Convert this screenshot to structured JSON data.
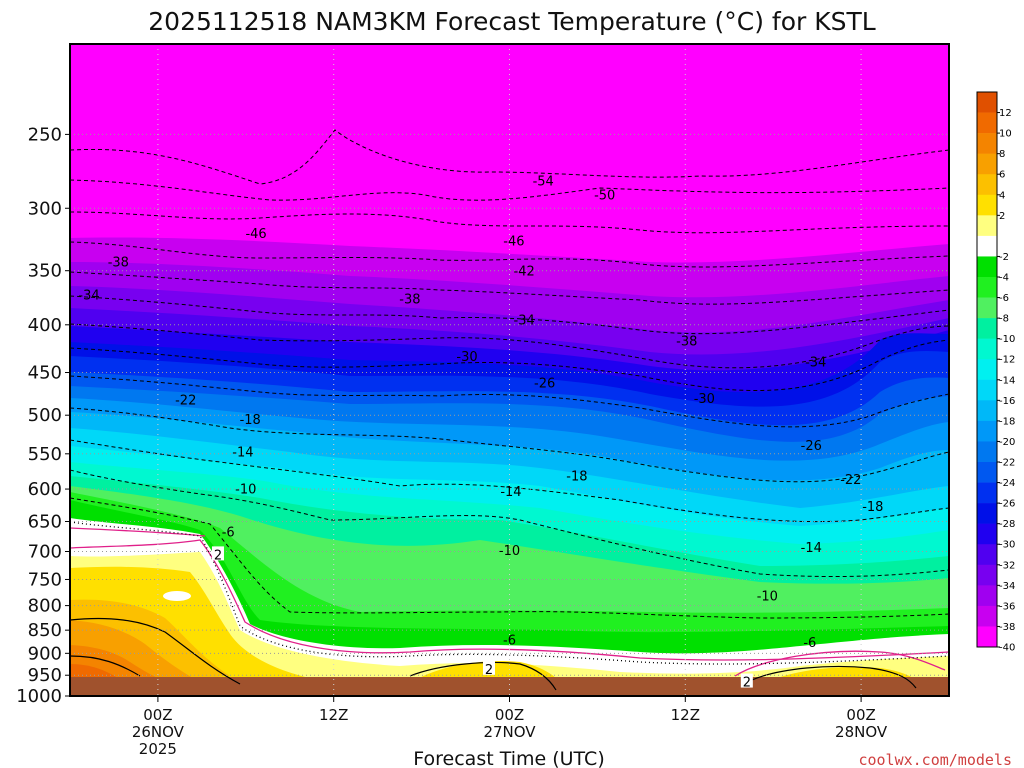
{
  "title": "2025112518 NAM3KM Forecast Temperature (°C) for KSTL",
  "credit": "coolwx.com/models",
  "chart_data": {
    "type": "heatmap",
    "title": "2025112518 NAM3KM Forecast Temperature (°C) for KSTL",
    "xlabel": "Forecast Time (UTC)",
    "ylabel": "",
    "y_scale": "log",
    "y_inverted": true,
    "ylim": [
      1000,
      200
    ],
    "xlim": [
      18,
      78
    ],
    "y_ticks": [
      250,
      300,
      350,
      400,
      450,
      500,
      550,
      600,
      650,
      700,
      750,
      800,
      850,
      900,
      950,
      1000
    ],
    "x_ticks": [
      {
        "hour": 24,
        "lines": [
          "00Z",
          "26NOV",
          "2025"
        ]
      },
      {
        "hour": 36,
        "lines": [
          "12Z"
        ]
      },
      {
        "hour": 48,
        "lines": [
          "00Z",
          "27NOV"
        ]
      },
      {
        "hour": 60,
        "lines": [
          "12Z"
        ]
      },
      {
        "hour": 72,
        "lines": [
          "00Z",
          "28NOV"
        ]
      }
    ],
    "grid": true,
    "legend": "colorbar-right",
    "colorbar": {
      "labels": [
        "12",
        "10",
        "8",
        "6",
        "4",
        "2",
        "-2",
        "-4",
        "-6",
        "-8",
        "-10",
        "-12",
        "-14",
        "-16",
        "-18",
        "-20",
        "-22",
        "-24",
        "-26",
        "-28",
        "-30",
        "-32",
        "-34",
        "-36",
        "-38",
        "-40"
      ],
      "bands": [
        {
          "color": "#e05000"
        },
        {
          "color": "#f06a00"
        },
        {
          "color": "#f48400"
        },
        {
          "color": "#f8a000"
        },
        {
          "color": "#fcc000"
        },
        {
          "color": "#ffe000"
        },
        {
          "color": "#ffff80"
        },
        {
          "color": "#ffffff"
        },
        {
          "color": "#00e000"
        },
        {
          "color": "#20f020"
        },
        {
          "color": "#50f060"
        },
        {
          "color": "#00f0a0"
        },
        {
          "color": "#00f8d0"
        },
        {
          "color": "#00f0f0"
        },
        {
          "color": "#00d8f8"
        },
        {
          "color": "#00b8f8"
        },
        {
          "color": "#0098f8"
        },
        {
          "color": "#0078f0"
        },
        {
          "color": "#0058f0"
        },
        {
          "color": "#0030f0"
        },
        {
          "color": "#0010e8"
        },
        {
          "color": "#2000f0"
        },
        {
          "color": "#5000f0"
        },
        {
          "color": "#7800f0"
        },
        {
          "color": "#a000f0"
        },
        {
          "color": "#c800f0"
        },
        {
          "color": "#ff00ff"
        }
      ]
    },
    "contour_labels": [
      {
        "hour": 19.3,
        "p": 371,
        "text": "-34"
      },
      {
        "hour": 21.3,
        "p": 342,
        "text": "-38"
      },
      {
        "hour": 30.7,
        "p": 319,
        "text": "-46"
      },
      {
        "hour": 41.2,
        "p": 375,
        "text": "-38"
      },
      {
        "hour": 45.1,
        "p": 432,
        "text": "-30"
      },
      {
        "hour": 50.3,
        "p": 280,
        "text": "-54"
      },
      {
        "hour": 54.5,
        "p": 290,
        "text": "-50"
      },
      {
        "hour": 48.3,
        "p": 325,
        "text": "-46"
      },
      {
        "hour": 49.0,
        "p": 350,
        "text": "-42"
      },
      {
        "hour": 49.0,
        "p": 395,
        "text": "-34"
      },
      {
        "hour": 50.4,
        "p": 461,
        "text": "-26"
      },
      {
        "hour": 60.1,
        "p": 416,
        "text": "-38"
      },
      {
        "hour": 68.9,
        "p": 438,
        "text": "-34"
      },
      {
        "hour": 61.3,
        "p": 479,
        "text": "-30"
      },
      {
        "hour": 25.9,
        "p": 481,
        "text": "-22"
      },
      {
        "hour": 30.3,
        "p": 505,
        "text": "-18"
      },
      {
        "hour": 29.8,
        "p": 547,
        "text": "-14"
      },
      {
        "hour": 30.0,
        "p": 599,
        "text": "-10"
      },
      {
        "hour": 28.8,
        "p": 666,
        "text": "-6"
      },
      {
        "hour": 28.1,
        "p": 705,
        "text": "2"
      },
      {
        "hour": 48.1,
        "p": 603,
        "text": "-14"
      },
      {
        "hour": 52.6,
        "p": 580,
        "text": "-18"
      },
      {
        "hour": 48.0,
        "p": 697,
        "text": "-10"
      },
      {
        "hour": 48.0,
        "p": 870,
        "text": "-6"
      },
      {
        "hour": 46.6,
        "p": 935,
        "text": "2"
      },
      {
        "hour": 68.6,
        "p": 538,
        "text": "-26"
      },
      {
        "hour": 71.3,
        "p": 585,
        "text": "-22"
      },
      {
        "hour": 72.8,
        "p": 626,
        "text": "-18"
      },
      {
        "hour": 68.6,
        "p": 692,
        "text": "-14"
      },
      {
        "hour": 65.6,
        "p": 780,
        "text": "-10"
      },
      {
        "hour": 68.5,
        "p": 875,
        "text": "-6"
      },
      {
        "hour": 64.2,
        "p": 965,
        "text": "2"
      }
    ]
  }
}
